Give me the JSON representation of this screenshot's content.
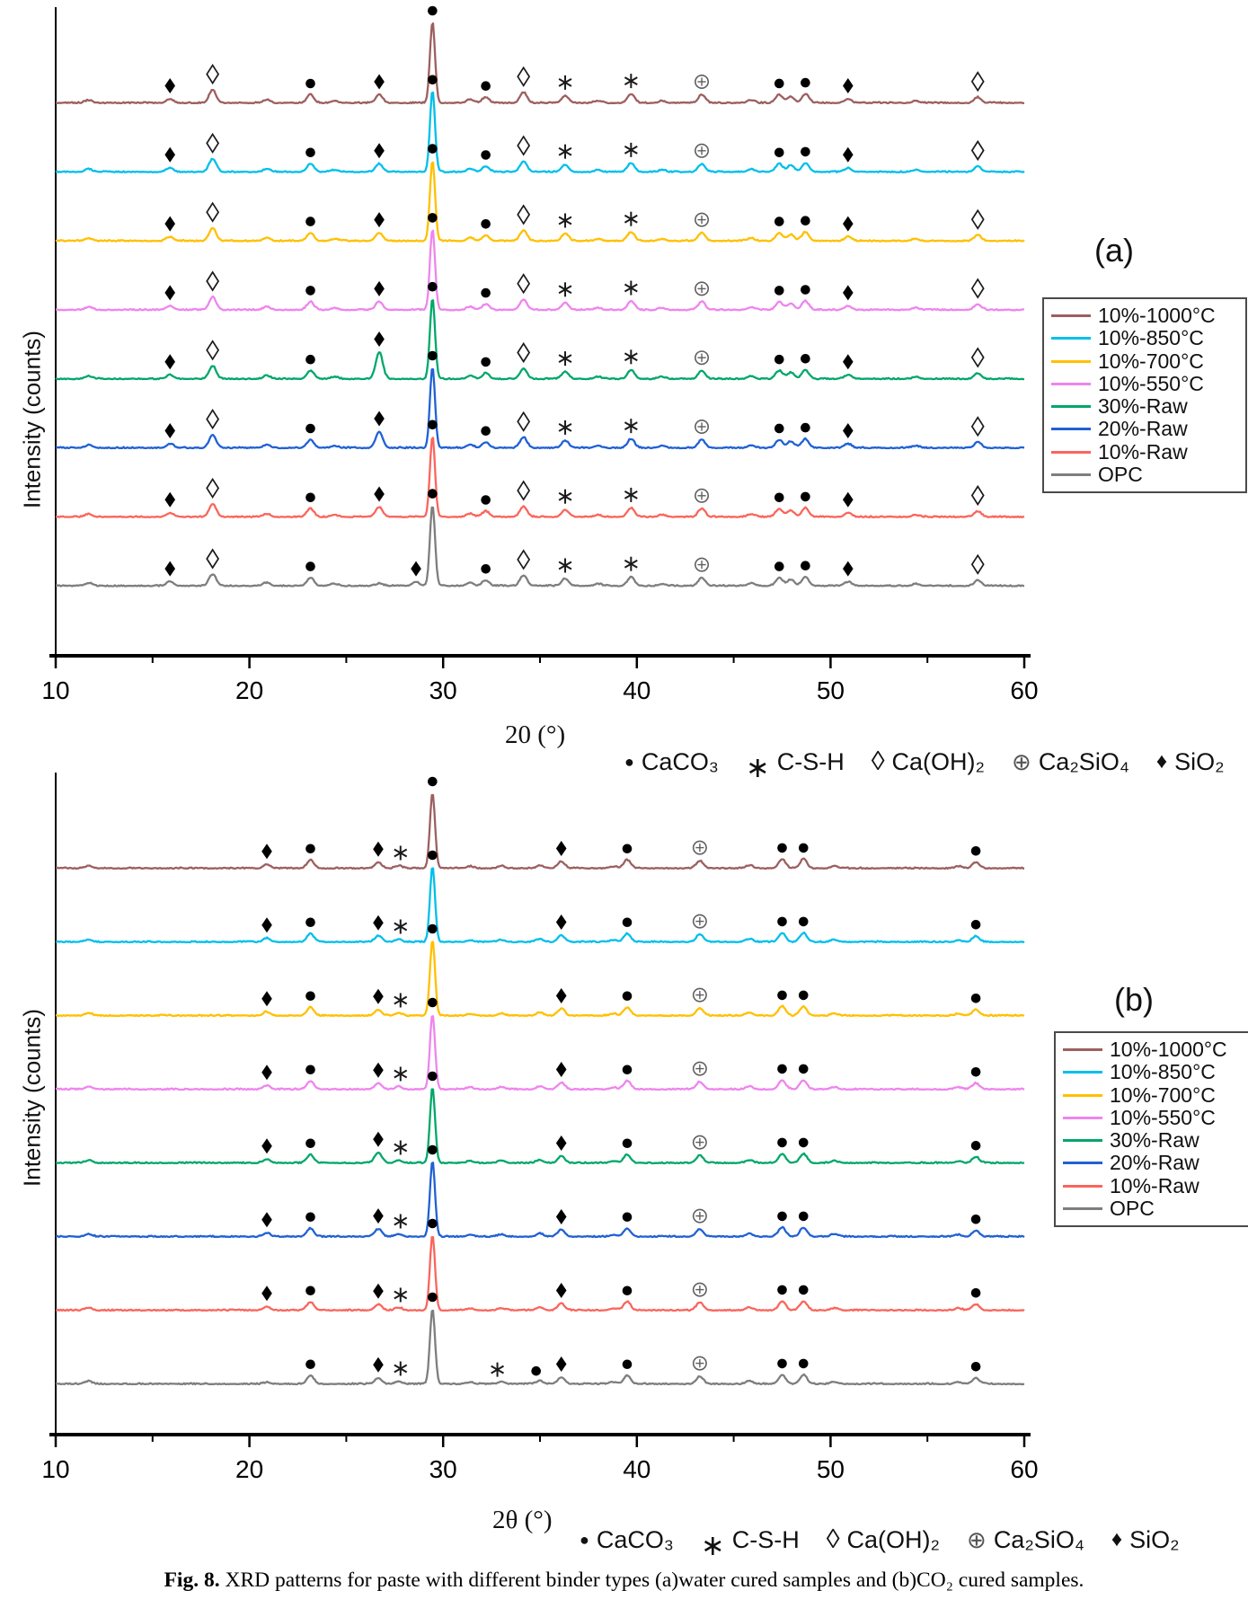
{
  "figure": {
    "ylabel": "Intensity (counts)"
  },
  "caption": {
    "label": "Fig. 8.",
    "text": "XRD patterns for paste with different binder types (a)water cured samples and (b)CO₂ cured samples."
  },
  "phase_legend": [
    {
      "symbol": "caco3",
      "glyph": "●",
      "label": "CaCO₃"
    },
    {
      "symbol": "csh",
      "glyph": "∗",
      "label": "C-S-H"
    },
    {
      "symbol": "caoh2",
      "glyph": "◊",
      "label": "Ca(OH)₂"
    },
    {
      "symbol": "ca2sio4",
      "glyph": "⊕",
      "label": "Ca₂SiO₄"
    },
    {
      "symbol": "sio2",
      "glyph": "♦",
      "label": "SiO₂"
    }
  ],
  "chart_data": [
    {
      "id": "a",
      "panel_label": "(a)",
      "type": "line",
      "title": "",
      "xlabel": "20 (°)",
      "ylabel": "Intensity (counts)",
      "xlim": [
        10,
        60
      ],
      "xticks": [
        10,
        20,
        30,
        40,
        50,
        60
      ],
      "xminor": [
        15,
        25,
        35,
        45,
        55
      ],
      "grid": false,
      "legend_position": "right",
      "x_unit": "degrees 2-theta",
      "peaks_base": [
        [
          11.7,
          0.035
        ],
        [
          15.9,
          0.05
        ],
        [
          18.1,
          0.16
        ],
        [
          20.9,
          0.04
        ],
        [
          23.15,
          0.1
        ],
        [
          24.4,
          0.025
        ],
        [
          26.7,
          0.1
        ],
        [
          29.45,
          1.0
        ],
        [
          31.4,
          0.04
        ],
        [
          32.2,
          0.07
        ],
        [
          34.15,
          0.13
        ],
        [
          36.3,
          0.09
        ],
        [
          38.0,
          0.025
        ],
        [
          39.7,
          0.11
        ],
        [
          41.3,
          0.025
        ],
        [
          43.35,
          0.1
        ],
        [
          45.9,
          0.035
        ],
        [
          47.35,
          0.1
        ],
        [
          47.95,
          0.08
        ],
        [
          48.7,
          0.11
        ],
        [
          50.9,
          0.05
        ],
        [
          54.4,
          0.025
        ],
        [
          57.6,
          0.07
        ]
      ],
      "markers_default": [
        [
          15.9,
          "sio2"
        ],
        [
          18.1,
          "caoh2"
        ],
        [
          23.15,
          "caco3"
        ],
        [
          26.7,
          "sio2"
        ],
        [
          29.45,
          "caco3"
        ],
        [
          32.2,
          "caco3"
        ],
        [
          34.15,
          "caoh2"
        ],
        [
          36.3,
          "csh"
        ],
        [
          39.7,
          "csh"
        ],
        [
          43.35,
          "ca2sio4"
        ],
        [
          47.35,
          "caco3"
        ],
        [
          48.7,
          "caco3"
        ],
        [
          50.9,
          "sio2"
        ],
        [
          57.6,
          "caoh2"
        ]
      ],
      "series": [
        {
          "name": "10%-1000°C",
          "color": "#9D5F5F"
        },
        {
          "name": "10%-850°C",
          "color": "#00BFEA"
        },
        {
          "name": "10%-700°C",
          "color": "#FFC000"
        },
        {
          "name": "10%-550°C",
          "color": "#EE85EE"
        },
        {
          "name": "30%-Raw",
          "color": "#00A76B",
          "peak_overrides": {
            "26.7": 0.33
          }
        },
        {
          "name": "20%-Raw",
          "color": "#2061D4",
          "peak_overrides": {
            "26.7": 0.2
          }
        },
        {
          "name": "10%-Raw",
          "color": "#FA655C",
          "peak_overrides": {
            "26.7": 0.12
          }
        },
        {
          "name": "OPC",
          "color": "#7E7E7E",
          "peak_overrides": {
            "26.7": 0.03,
            "18.1": 0.14
          },
          "extra_peaks": [
            [
              28.6,
              0.05
            ]
          ],
          "markers": [
            [
              15.9,
              "sio2"
            ],
            [
              18.1,
              "caoh2"
            ],
            [
              23.15,
              "caco3"
            ],
            [
              28.6,
              "sio2"
            ],
            [
              29.45,
              "caco3"
            ],
            [
              32.2,
              "caco3"
            ],
            [
              34.15,
              "caoh2"
            ],
            [
              36.3,
              "csh"
            ],
            [
              39.7,
              "csh"
            ],
            [
              43.35,
              "ca2sio4"
            ],
            [
              47.35,
              "caco3"
            ],
            [
              48.7,
              "caco3"
            ],
            [
              50.9,
              "sio2"
            ],
            [
              57.6,
              "caoh2"
            ]
          ]
        }
      ]
    },
    {
      "id": "b",
      "panel_label": "(b)",
      "type": "line",
      "title": "",
      "xlabel": "2θ (°)",
      "ylabel": "Intensity (counts)",
      "xlim": [
        10,
        60
      ],
      "xticks": [
        10,
        20,
        30,
        40,
        50,
        60
      ],
      "xminor": [
        15,
        25,
        35,
        45,
        55
      ],
      "grid": false,
      "legend_position": "right",
      "x_unit": "degrees 2-theta",
      "peaks_base": [
        [
          11.7,
          0.035
        ],
        [
          20.9,
          0.05
        ],
        [
          23.15,
          0.11
        ],
        [
          26.65,
          0.08
        ],
        [
          27.7,
          0.035
        ],
        [
          29.45,
          1.0
        ],
        [
          31.4,
          0.025
        ],
        [
          33.0,
          0.03
        ],
        [
          35.0,
          0.04
        ],
        [
          36.1,
          0.09
        ],
        [
          38.8,
          0.025
        ],
        [
          39.5,
          0.11
        ],
        [
          43.25,
          0.1
        ],
        [
          45.8,
          0.04
        ],
        [
          47.5,
          0.12
        ],
        [
          48.6,
          0.12
        ],
        [
          50.2,
          0.03
        ],
        [
          56.6,
          0.025
        ],
        [
          57.5,
          0.08
        ]
      ],
      "markers_default": [
        [
          20.9,
          "sio2"
        ],
        [
          23.15,
          "caco3"
        ],
        [
          26.65,
          "sio2"
        ],
        [
          27.8,
          "csh"
        ],
        [
          29.45,
          "caco3"
        ],
        [
          36.1,
          "sio2"
        ],
        [
          39.5,
          "caco3"
        ],
        [
          43.25,
          "ca2sio4"
        ],
        [
          47.5,
          "caco3"
        ],
        [
          48.6,
          "caco3"
        ],
        [
          57.5,
          "caco3"
        ]
      ],
      "series": [
        {
          "name": "10%-1000°C",
          "color": "#9D5F5F"
        },
        {
          "name": "10%-850°C",
          "color": "#00BFEA"
        },
        {
          "name": "10%-700°C",
          "color": "#FFC000"
        },
        {
          "name": "10%-550°C",
          "color": "#EE85EE"
        },
        {
          "name": "30%-Raw",
          "color": "#00A76B",
          "peak_overrides": {
            "26.65": 0.14
          }
        },
        {
          "name": "20%-Raw",
          "color": "#2061D4",
          "peak_overrides": {
            "26.65": 0.1
          }
        },
        {
          "name": "10%-Raw",
          "color": "#FA655C"
        },
        {
          "name": "OPC",
          "color": "#7E7E7E",
          "peak_overrides": {
            "20.9": 0.02
          },
          "markers": [
            [
              23.15,
              "caco3"
            ],
            [
              26.65,
              "sio2"
            ],
            [
              27.8,
              "csh"
            ],
            [
              29.45,
              "caco3"
            ],
            [
              32.8,
              "csh"
            ],
            [
              34.8,
              "caco3"
            ],
            [
              36.1,
              "sio2"
            ],
            [
              39.5,
              "caco3"
            ],
            [
              43.25,
              "ca2sio4"
            ],
            [
              47.5,
              "caco3"
            ],
            [
              48.6,
              "caco3"
            ],
            [
              57.5,
              "caco3"
            ]
          ]
        }
      ]
    }
  ]
}
